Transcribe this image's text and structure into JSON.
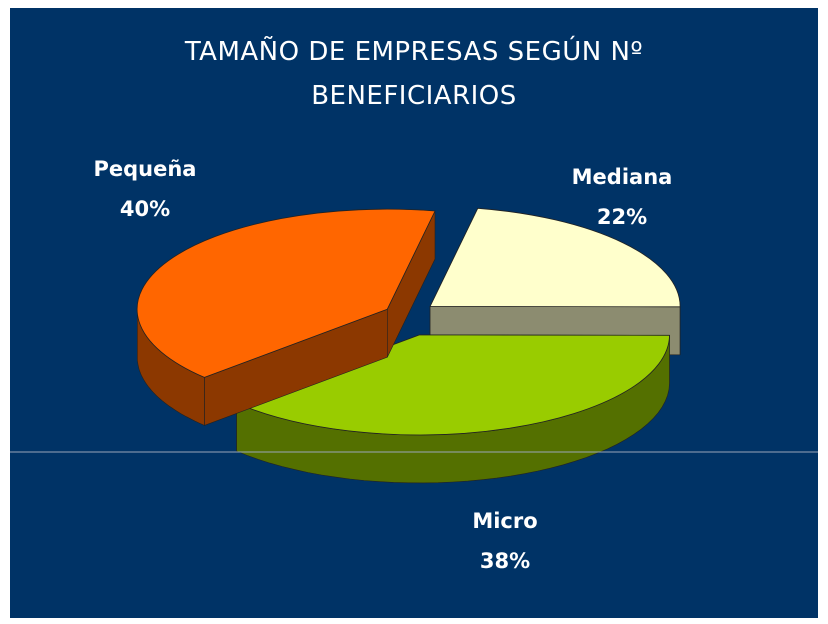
{
  "chart_data": {
    "type": "pie",
    "title": "TAMAÑO DE EMPRESAS SEGÚN Nº BENEFICIARIOS",
    "categories": [
      "Mediana",
      "Micro",
      "Pequeña"
    ],
    "values": [
      22,
      38,
      40
    ],
    "value_labels": [
      "22%",
      "38%",
      "40%"
    ],
    "colors": [
      "#ffffcc",
      "#99cc00",
      "#ff6600"
    ]
  }
}
